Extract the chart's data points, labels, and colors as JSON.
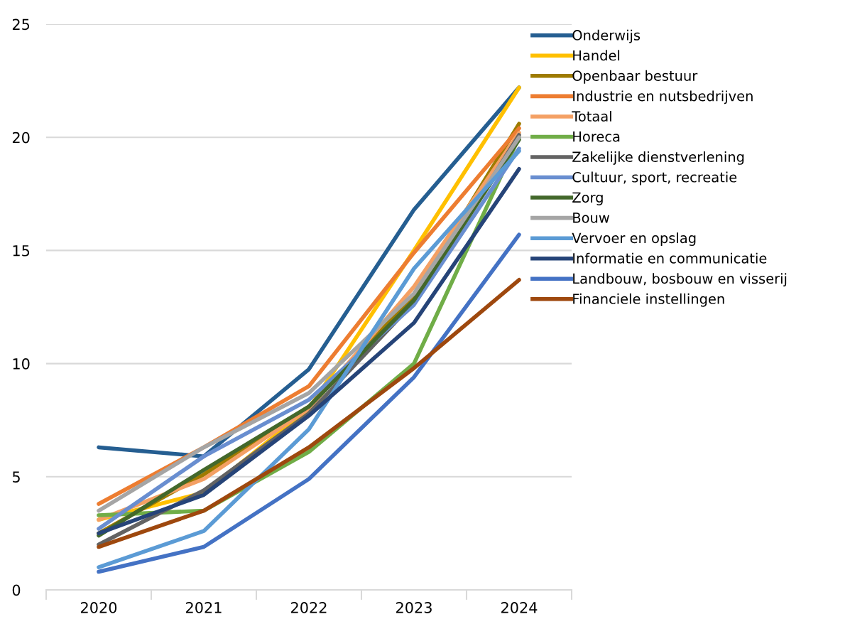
{
  "chart_data": {
    "type": "line",
    "categories": [
      "2020",
      "2021",
      "2022",
      "2023",
      "2024"
    ],
    "ylim": [
      0,
      25
    ],
    "yticks": [
      0,
      5,
      10,
      15,
      20,
      25
    ],
    "grid": "y",
    "legend": "top right",
    "marker": "none",
    "line_style": "solid",
    "series": [
      {
        "name": "Onderwijs",
        "color": "#255e91",
        "values": [
          6.3,
          5.9,
          9.75,
          16.8,
          22.2
        ]
      },
      {
        "name": "Handel",
        "color": "#ffc000",
        "values": [
          3.1,
          4.3,
          8.0,
          15.0,
          22.2
        ]
      },
      {
        "name": "Openbaar bestuur",
        "color": "#9e7b00",
        "values": [
          2.5,
          5.1,
          8.1,
          13.0,
          20.6
        ]
      },
      {
        "name": "Industrie en nutsbedrijven",
        "color": "#ed7d31",
        "values": [
          3.8,
          6.3,
          9.0,
          14.9,
          20.4
        ]
      },
      {
        "name": "Totaal",
        "color": "#f4a064",
        "values": [
          3.1,
          4.9,
          8.0,
          13.4,
          20.2
        ]
      },
      {
        "name": "Horeca",
        "color": "#70ad47",
        "values": [
          3.3,
          3.5,
          6.1,
          10.0,
          20.0
        ]
      },
      {
        "name": "Zakelijke dienstverlening",
        "color": "#636363",
        "values": [
          2.0,
          4.4,
          7.8,
          12.7,
          20.1
        ]
      },
      {
        "name": "Cultuur, sport, recreatie",
        "color": "#698ed0",
        "values": [
          2.7,
          5.9,
          8.4,
          12.6,
          19.5
        ]
      },
      {
        "name": "Zorg",
        "color": "#43682b",
        "values": [
          2.4,
          5.3,
          8.1,
          12.8,
          19.9
        ]
      },
      {
        "name": "Bouw",
        "color": "#a5a5a5",
        "values": [
          3.5,
          6.3,
          8.7,
          13.1,
          20.0
        ]
      },
      {
        "name": "Vervoer en opslag",
        "color": "#5b9bd5",
        "values": [
          1.0,
          2.6,
          7.1,
          14.2,
          19.4
        ]
      },
      {
        "name": "Informatie en communicatie",
        "color": "#264478",
        "values": [
          2.5,
          4.2,
          7.7,
          11.8,
          18.6
        ]
      },
      {
        "name": "Landbouw, bosbouw en visserij",
        "color": "#4472c4",
        "values": [
          0.8,
          1.9,
          4.9,
          9.4,
          15.7
        ]
      },
      {
        "name": "Financiele instellingen",
        "color": "#9e480e",
        "values": [
          1.9,
          3.5,
          6.3,
          9.8,
          13.7
        ]
      }
    ]
  }
}
